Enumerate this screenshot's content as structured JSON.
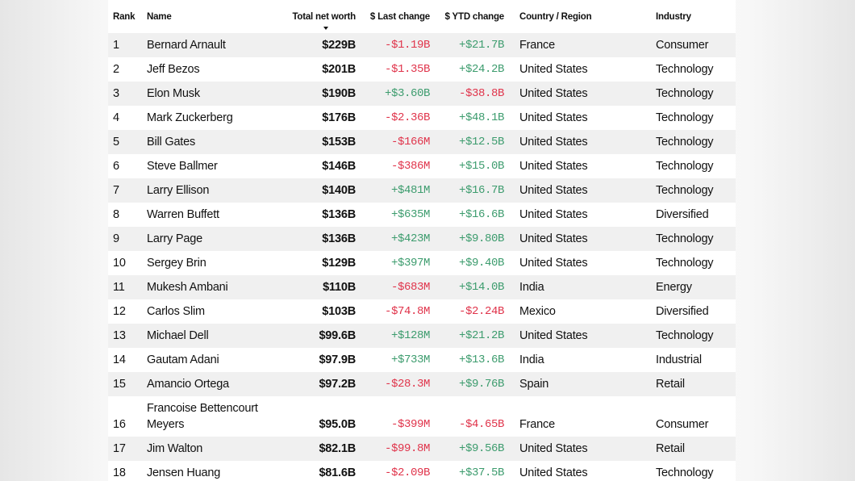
{
  "table": {
    "headers": [
      "Rank",
      "Name",
      "Total net worth",
      "$ Last change",
      "$ YTD change",
      "Country / Region",
      "Industry"
    ],
    "rows": [
      [
        "1",
        "Bernard Arnault",
        "$229B",
        "-$1.19B",
        "+$21.7B",
        "France",
        "Consumer"
      ],
      [
        "2",
        "Jeff Bezos",
        "$201B",
        "-$1.35B",
        "+$24.2B",
        "United States",
        "Technology"
      ],
      [
        "3",
        "Elon Musk",
        "$190B",
        "+$3.60B",
        "-$38.8B",
        "United States",
        "Technology"
      ],
      [
        "4",
        "Mark Zuckerberg",
        "$176B",
        "-$2.36B",
        "+$48.1B",
        "United States",
        "Technology"
      ],
      [
        "5",
        "Bill Gates",
        "$153B",
        "-$166M",
        "+$12.5B",
        "United States",
        "Technology"
      ],
      [
        "6",
        "Steve Ballmer",
        "$146B",
        "-$386M",
        "+$15.0B",
        "United States",
        "Technology"
      ],
      [
        "7",
        "Larry Ellison",
        "$140B",
        "+$481M",
        "+$16.7B",
        "United States",
        "Technology"
      ],
      [
        "8",
        "Warren Buffett",
        "$136B",
        "+$635M",
        "+$16.6B",
        "United States",
        "Diversified"
      ],
      [
        "9",
        "Larry Page",
        "$136B",
        "+$423M",
        "+$9.80B",
        "United States",
        "Technology"
      ],
      [
        "10",
        "Sergey Brin",
        "$129B",
        "+$397M",
        "+$9.40B",
        "United States",
        "Technology"
      ],
      [
        "11",
        "Mukesh Ambani",
        "$110B",
        "-$683M",
        "+$14.0B",
        "India",
        "Energy"
      ],
      [
        "12",
        "Carlos Slim",
        "$103B",
        "-$74.8M",
        "-$2.24B",
        "Mexico",
        "Diversified"
      ],
      [
        "13",
        "Michael Dell",
        "$99.6B",
        "+$128M",
        "+$21.2B",
        "United States",
        "Technology"
      ],
      [
        "14",
        "Gautam Adani",
        "$97.9B",
        "+$733M",
        "+$13.6B",
        "India",
        "Industrial"
      ],
      [
        "15",
        "Amancio Ortega",
        "$97.2B",
        "-$28.3M",
        "+$9.76B",
        "Spain",
        "Retail"
      ],
      [
        "16",
        "Francoise Bettencourt Meyers",
        "$95.0B",
        "-$399M",
        "-$4.65B",
        "France",
        "Consumer"
      ],
      [
        "17",
        "Jim Walton",
        "$82.1B",
        "-$99.8M",
        "+$9.56B",
        "United States",
        "Retail"
      ],
      [
        "18",
        "Jensen Huang",
        "$81.6B",
        "-$2.09B",
        "+$37.5B",
        "United States",
        "Technology"
      ]
    ]
  }
}
